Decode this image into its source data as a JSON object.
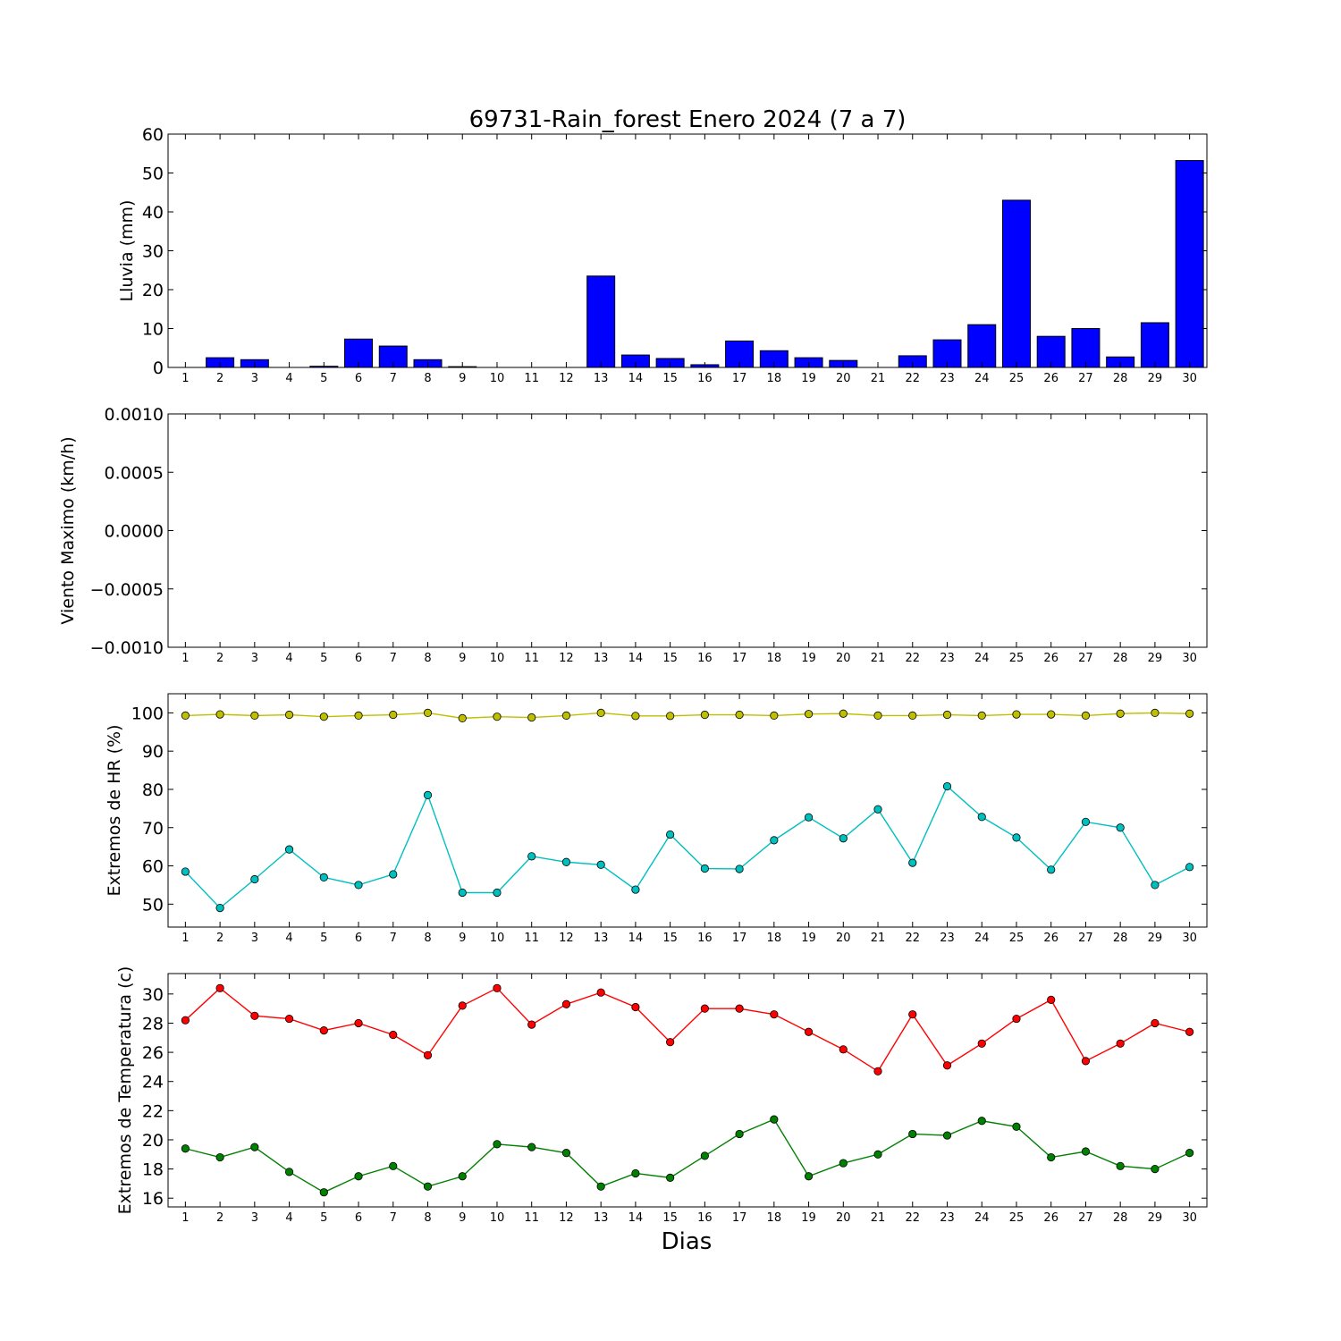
{
  "figure": {
    "title": "69731-Rain_forest Enero 2024  (7 a 7)",
    "xlabel": "Dias"
  },
  "chart_data": [
    {
      "type": "bar",
      "ylabel": "Lluvia (mm)",
      "ylim": [
        0,
        60
      ],
      "yticks": [
        "0",
        "10",
        "20",
        "30",
        "40",
        "50",
        "60"
      ],
      "categories": [
        "1",
        "2",
        "3",
        "4",
        "5",
        "6",
        "7",
        "8",
        "9",
        "10",
        "11",
        "12",
        "13",
        "14",
        "15",
        "16",
        "17",
        "18",
        "19",
        "20",
        "21",
        "22",
        "23",
        "24",
        "25",
        "26",
        "27",
        "28",
        "29",
        "30"
      ],
      "values": [
        0.0,
        2.5,
        2.0,
        0.0,
        0.3,
        7.3,
        5.5,
        2.0,
        0.2,
        0.0,
        0.0,
        0.0,
        23.5,
        3.2,
        2.3,
        0.7,
        6.8,
        4.3,
        2.5,
        1.8,
        0.0,
        3.0,
        7.1,
        11.0,
        43.0,
        8.0,
        10.0,
        2.7,
        11.5,
        53.2
      ],
      "color": "#0000ff"
    },
    {
      "type": "line",
      "ylabel": "Viento Maximo (km/h)",
      "ylim": [
        -0.001,
        0.001
      ],
      "yticks": [
        "−0.0010",
        "−0.0005",
        "0.0000",
        "0.0005",
        "0.0010"
      ],
      "categories": [
        "1",
        "2",
        "3",
        "4",
        "5",
        "6",
        "7",
        "8",
        "9",
        "10",
        "11",
        "12",
        "13",
        "14",
        "15",
        "16",
        "17",
        "18",
        "19",
        "20",
        "21",
        "22",
        "23",
        "24",
        "25",
        "26",
        "27",
        "28",
        "29",
        "30"
      ],
      "series": []
    },
    {
      "type": "line",
      "ylabel": "Extremos de HR (%)",
      "ylim": [
        44,
        105
      ],
      "yticks": [
        "50",
        "60",
        "70",
        "80",
        "90",
        "100"
      ],
      "categories": [
        "1",
        "2",
        "3",
        "4",
        "5",
        "6",
        "7",
        "8",
        "9",
        "10",
        "11",
        "12",
        "13",
        "14",
        "15",
        "16",
        "17",
        "18",
        "19",
        "20",
        "21",
        "22",
        "23",
        "24",
        "25",
        "26",
        "27",
        "28",
        "29",
        "30"
      ],
      "series": [
        {
          "color": "#bfbf00",
          "values": [
            99.3,
            99.6,
            99.3,
            99.5,
            99.0,
            99.3,
            99.5,
            100.0,
            98.6,
            99.0,
            98.8,
            99.3,
            100.0,
            99.2,
            99.2,
            99.5,
            99.5,
            99.3,
            99.7,
            99.8,
            99.3,
            99.3,
            99.5,
            99.3,
            99.6,
            99.6,
            99.3,
            99.8,
            100.0,
            99.8
          ]
        },
        {
          "color": "#00bfbf",
          "values": [
            58.5,
            49.0,
            56.5,
            64.3,
            57.0,
            55.0,
            57.8,
            78.5,
            53.0,
            53.0,
            62.5,
            61.0,
            60.3,
            53.8,
            68.2,
            59.3,
            59.2,
            66.7,
            72.7,
            67.2,
            74.8,
            60.8,
            80.8,
            72.8,
            67.4,
            59.0,
            71.5,
            70.0,
            55.0,
            59.7
          ]
        }
      ]
    },
    {
      "type": "line",
      "ylabel": "Extremos de Temperatura (c)",
      "ylim": [
        15.4,
        31.4
      ],
      "yticks": [
        "16",
        "18",
        "20",
        "22",
        "24",
        "26",
        "28",
        "30"
      ],
      "categories": [
        "1",
        "2",
        "3",
        "4",
        "5",
        "6",
        "7",
        "8",
        "9",
        "10",
        "11",
        "12",
        "13",
        "14",
        "15",
        "16",
        "17",
        "18",
        "19",
        "20",
        "21",
        "22",
        "23",
        "24",
        "25",
        "26",
        "27",
        "28",
        "29",
        "30"
      ],
      "series": [
        {
          "color": "#ff0000",
          "values": [
            28.2,
            30.4,
            28.5,
            28.3,
            27.5,
            28.0,
            27.2,
            25.8,
            29.2,
            30.4,
            27.9,
            29.3,
            30.1,
            29.1,
            26.7,
            29.0,
            29.0,
            28.6,
            27.4,
            26.2,
            24.7,
            28.6,
            25.1,
            26.6,
            28.3,
            29.6,
            25.4,
            26.6,
            28.0,
            27.4
          ]
        },
        {
          "color": "#008000",
          "values": [
            19.4,
            18.8,
            19.5,
            17.8,
            16.4,
            17.5,
            18.2,
            16.8,
            17.5,
            19.7,
            19.5,
            19.1,
            16.8,
            17.7,
            17.4,
            18.9,
            20.4,
            21.4,
            17.5,
            18.4,
            19.0,
            20.4,
            20.3,
            21.3,
            20.9,
            18.8,
            19.2,
            18.2,
            18.0,
            19.1
          ]
        }
      ]
    }
  ]
}
